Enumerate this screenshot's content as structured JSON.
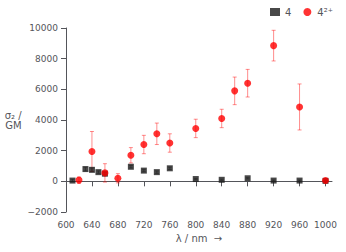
{
  "chart_data": {
    "type": "scatter",
    "xlabel": "λ / nm  →",
    "ylabel": "σ₂ /\nGM",
    "xlim": [
      600,
      1010
    ],
    "xticks": [
      600,
      640,
      680,
      720,
      760,
      800,
      840,
      880,
      920,
      960,
      1000
    ],
    "ylim": [
      -2000,
      10000
    ],
    "yticks": [
      {
        "value": -2000,
        "label": "−2000"
      },
      0,
      2000,
      4000,
      6000,
      8000,
      10000
    ],
    "grid": false,
    "legend": "upper right",
    "series": [
      {
        "name": "4",
        "color": "#1a1a1a",
        "marker": "square",
        "x": [
          610,
          630,
          640,
          650,
          660,
          700,
          720,
          740,
          760,
          800,
          840,
          880,
          920,
          960,
          1000
        ],
        "values": [
          50,
          800,
          750,
          600,
          500,
          950,
          700,
          600,
          850,
          150,
          100,
          200,
          50,
          50,
          30
        ],
        "yerr": [
          80,
          120,
          120,
          80,
          80,
          80,
          80,
          80,
          80,
          40,
          40,
          40,
          40,
          40,
          20
        ]
      },
      {
        "name": "4²⁺",
        "color": "#ff0000",
        "marker": "circle",
        "x": [
          620,
          640,
          660,
          680,
          700,
          720,
          740,
          760,
          800,
          840,
          860,
          880,
          920,
          960,
          1000
        ],
        "values": [
          80,
          1950,
          550,
          200,
          1700,
          2400,
          3100,
          2500,
          3450,
          4100,
          5900,
          6400,
          8850,
          4850,
          50
        ],
        "yerr": [
          200,
          1300,
          600,
          300,
          500,
          600,
          700,
          600,
          600,
          600,
          900,
          900,
          1000,
          1500,
          100
        ]
      }
    ]
  }
}
